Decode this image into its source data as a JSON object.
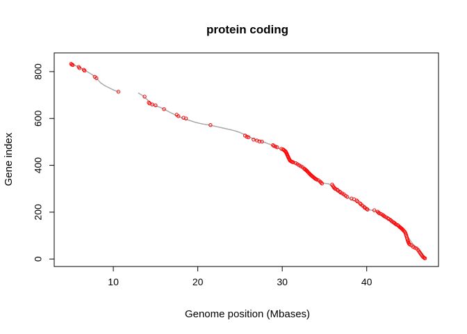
{
  "chart_data": {
    "type": "scatter",
    "title": "protein coding",
    "xlabel": "Genome position (Mbases)",
    "ylabel": "Gene index",
    "xlim": [
      3.0,
      48.5
    ],
    "ylim": [
      -32,
      880
    ],
    "x_ticks": [
      10,
      20,
      30,
      40
    ],
    "y_ticks": [
      0,
      200,
      400,
      600,
      800
    ],
    "grid": false,
    "legend": "none",
    "colors": {
      "background_points": "#aaaaaa",
      "highlight_points": "#ff0000",
      "axes": "#000000"
    },
    "series": [
      {
        "role": "all-genes",
        "marker": "small-dot",
        "points": [
          [
            5.0,
            833
          ],
          [
            5.5,
            826
          ],
          [
            6.0,
            818
          ],
          [
            6.5,
            808
          ],
          [
            7.0,
            798
          ],
          [
            7.5,
            787
          ],
          [
            8.0,
            772
          ],
          [
            8.5,
            752
          ],
          [
            9.0,
            740
          ],
          [
            9.5,
            731
          ],
          [
            10.0,
            722
          ],
          [
            10.6,
            714
          ],
          [
            13.0,
            708
          ],
          [
            13.5,
            697
          ],
          [
            14.0,
            681
          ],
          [
            14.5,
            662
          ],
          [
            15.0,
            654
          ],
          [
            15.5,
            648
          ],
          [
            16.0,
            640
          ],
          [
            16.5,
            630
          ],
          [
            17.0,
            621
          ],
          [
            17.5,
            612
          ],
          [
            18.0,
            605
          ],
          [
            18.5,
            598
          ],
          [
            19.0,
            592
          ],
          [
            19.5,
            586
          ],
          [
            20.0,
            581
          ],
          [
            20.5,
            577
          ],
          [
            21.0,
            574
          ],
          [
            21.5,
            571
          ],
          [
            22.0,
            567
          ],
          [
            22.5,
            563
          ],
          [
            23.0,
            559
          ],
          [
            23.5,
            555
          ],
          [
            24.0,
            551
          ],
          [
            24.5,
            546
          ],
          [
            25.0,
            540
          ],
          [
            25.5,
            532
          ],
          [
            26.0,
            523
          ],
          [
            26.5,
            514
          ],
          [
            27.0,
            507
          ],
          [
            27.5,
            502
          ],
          [
            28.0,
            497
          ],
          [
            28.5,
            490
          ],
          [
            29.0,
            483
          ],
          [
            29.5,
            474
          ],
          [
            30.0,
            466
          ],
          [
            30.5,
            452
          ],
          [
            31.0,
            425
          ],
          [
            31.5,
            410
          ],
          [
            32.0,
            402
          ],
          [
            32.5,
            390
          ],
          [
            33.0,
            374
          ],
          [
            33.5,
            358
          ],
          [
            34.0,
            343
          ],
          [
            34.5,
            328
          ],
          [
            35.0,
            323
          ],
          [
            35.5,
            321
          ],
          [
            36.0,
            306
          ],
          [
            36.5,
            293
          ],
          [
            37.0,
            281
          ],
          [
            37.5,
            266
          ],
          [
            38.0,
            259
          ],
          [
            38.5,
            249
          ],
          [
            39.0,
            238
          ],
          [
            39.5,
            225
          ],
          [
            40.0,
            213
          ],
          [
            40.5,
            209
          ],
          [
            41.0,
            206
          ],
          [
            41.5,
            196
          ],
          [
            42.0,
            183
          ],
          [
            42.5,
            172
          ],
          [
            43.0,
            159
          ],
          [
            43.5,
            146
          ],
          [
            44.0,
            133
          ],
          [
            44.5,
            115
          ],
          [
            45.0,
            88
          ],
          [
            45.5,
            62
          ],
          [
            46.0,
            46
          ],
          [
            46.5,
            22
          ],
          [
            46.9,
            4
          ]
        ]
      },
      {
        "role": "highlighted-genes",
        "marker": "open-circle",
        "points": [
          [
            5.0,
            833
          ],
          [
            5.1,
            830
          ],
          [
            5.2,
            828
          ],
          [
            5.9,
            820
          ],
          [
            6.0,
            815
          ],
          [
            6.5,
            808
          ],
          [
            6.6,
            804
          ],
          [
            7.8,
            778
          ],
          [
            8.0,
            772
          ],
          [
            10.6,
            714
          ],
          [
            13.7,
            693
          ],
          [
            14.2,
            668
          ],
          [
            14.3,
            664
          ],
          [
            14.6,
            660
          ],
          [
            15.0,
            656
          ],
          [
            16.0,
            640
          ],
          [
            17.5,
            616
          ],
          [
            17.7,
            610
          ],
          [
            18.3,
            603
          ],
          [
            18.6,
            600
          ],
          [
            21.5,
            572
          ],
          [
            25.6,
            527
          ],
          [
            25.8,
            522
          ],
          [
            26.0,
            520
          ],
          [
            26.6,
            510
          ],
          [
            27.0,
            506
          ],
          [
            27.3,
            502
          ],
          [
            27.6,
            501
          ],
          [
            28.9,
            486
          ],
          [
            29.0,
            483
          ],
          [
            29.2,
            480
          ],
          [
            29.4,
            477
          ],
          [
            29.9,
            470
          ],
          [
            30.1,
            468
          ],
          [
            30.2,
            465
          ],
          [
            30.3,
            462
          ],
          [
            30.4,
            459
          ],
          [
            30.45,
            456
          ],
          [
            30.5,
            452
          ],
          [
            30.55,
            448
          ],
          [
            30.6,
            444
          ],
          [
            30.65,
            440
          ],
          [
            30.7,
            436
          ],
          [
            30.75,
            432
          ],
          [
            30.8,
            428
          ],
          [
            30.85,
            425
          ],
          [
            30.9,
            421
          ],
          [
            31.0,
            418
          ],
          [
            31.1,
            416
          ],
          [
            31.2,
            414
          ],
          [
            31.3,
            413
          ],
          [
            31.6,
            409
          ],
          [
            31.8,
            405
          ],
          [
            32.0,
            400
          ],
          [
            32.2,
            396
          ],
          [
            32.4,
            392
          ],
          [
            32.6,
            386
          ],
          [
            32.7,
            383
          ],
          [
            32.8,
            380
          ],
          [
            32.9,
            377
          ],
          [
            33.0,
            373
          ],
          [
            33.1,
            369
          ],
          [
            33.2,
            365
          ],
          [
            33.3,
            362
          ],
          [
            33.4,
            358
          ],
          [
            33.5,
            355
          ],
          [
            33.6,
            352
          ],
          [
            33.7,
            349
          ],
          [
            33.8,
            346
          ],
          [
            33.9,
            343
          ],
          [
            34.0,
            341
          ],
          [
            34.1,
            339
          ],
          [
            34.3,
            336
          ],
          [
            34.5,
            330
          ],
          [
            34.6,
            326
          ],
          [
            34.7,
            322
          ],
          [
            35.9,
            318
          ],
          [
            36.0,
            312
          ],
          [
            36.1,
            306
          ],
          [
            36.2,
            302
          ],
          [
            36.3,
            299
          ],
          [
            36.5,
            296
          ],
          [
            36.6,
            292
          ],
          [
            36.8,
            288
          ],
          [
            36.9,
            284
          ],
          [
            37.1,
            280
          ],
          [
            37.3,
            276
          ],
          [
            37.5,
            270
          ],
          [
            37.7,
            265
          ],
          [
            38.2,
            258
          ],
          [
            38.5,
            255
          ],
          [
            38.8,
            250
          ],
          [
            38.9,
            246
          ],
          [
            39.2,
            238
          ],
          [
            39.3,
            234
          ],
          [
            39.5,
            228
          ],
          [
            39.7,
            222
          ],
          [
            39.8,
            218
          ],
          [
            40.0,
            214
          ],
          [
            40.1,
            211
          ],
          [
            40.9,
            208
          ],
          [
            41.3,
            202
          ],
          [
            41.4,
            198
          ],
          [
            41.5,
            195
          ],
          [
            41.7,
            192
          ],
          [
            41.9,
            188
          ],
          [
            42.0,
            185
          ],
          [
            42.1,
            182
          ],
          [
            42.3,
            178
          ],
          [
            42.5,
            174
          ],
          [
            42.6,
            171
          ],
          [
            42.8,
            167
          ],
          [
            42.9,
            164
          ],
          [
            43.0,
            160
          ],
          [
            43.2,
            156
          ],
          [
            43.3,
            153
          ],
          [
            43.4,
            150
          ],
          [
            43.5,
            147
          ],
          [
            43.7,
            144
          ],
          [
            43.8,
            140
          ],
          [
            43.9,
            137
          ],
          [
            44.0,
            134
          ],
          [
            44.1,
            131
          ],
          [
            44.2,
            128
          ],
          [
            44.3,
            124
          ],
          [
            44.4,
            120
          ],
          [
            44.5,
            116
          ],
          [
            44.6,
            110
          ],
          [
            44.65,
            104
          ],
          [
            44.7,
            98
          ],
          [
            44.75,
            92
          ],
          [
            44.8,
            86
          ],
          [
            44.85,
            80
          ],
          [
            44.9,
            75
          ],
          [
            44.95,
            70
          ],
          [
            45.0,
            66
          ],
          [
            45.1,
            62
          ],
          [
            45.3,
            58
          ],
          [
            45.5,
            52
          ],
          [
            45.7,
            48
          ],
          [
            45.9,
            45
          ],
          [
            46.1,
            38
          ],
          [
            46.2,
            32
          ],
          [
            46.3,
            27
          ],
          [
            46.4,
            22
          ],
          [
            46.5,
            17
          ],
          [
            46.6,
            12
          ],
          [
            46.7,
            8
          ],
          [
            46.8,
            5
          ],
          [
            46.9,
            3
          ]
        ]
      }
    ]
  }
}
